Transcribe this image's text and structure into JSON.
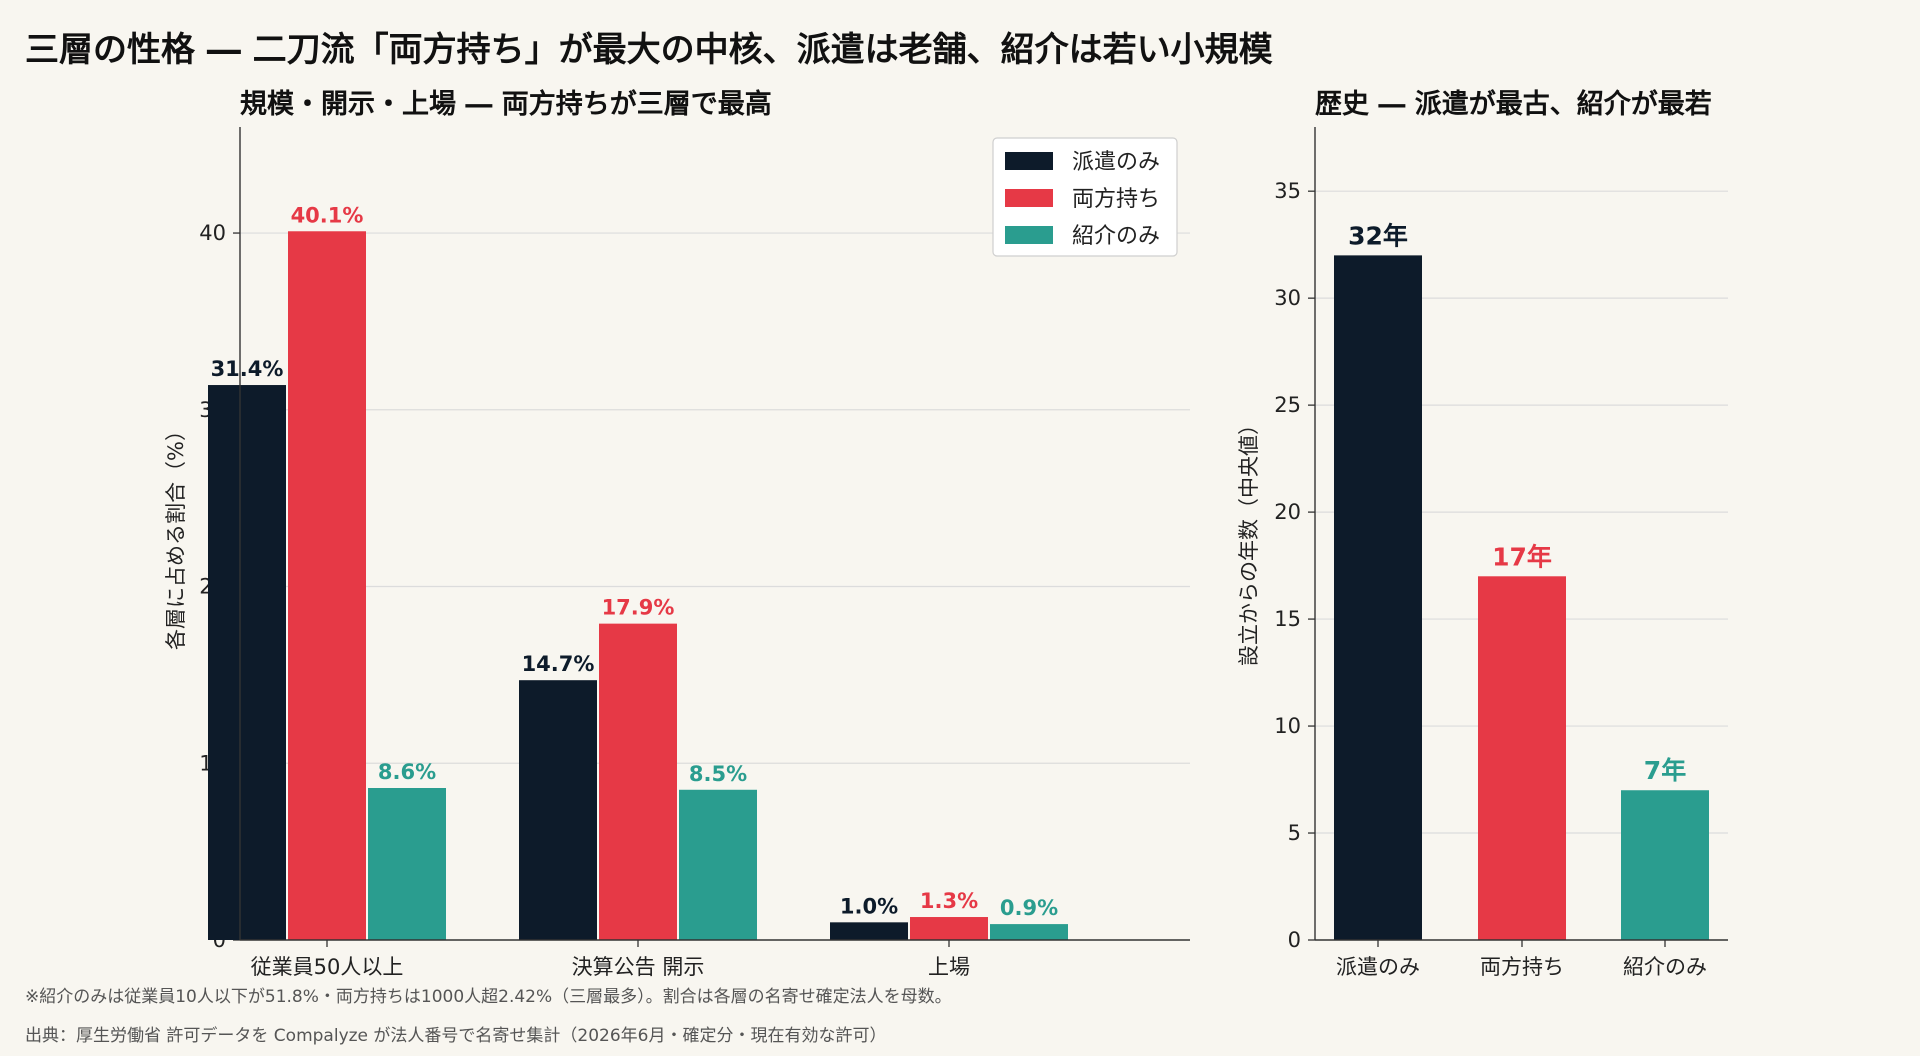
{
  "title": "三層の性格 ― 二刀流「両方持ち」が最大の中核、派遣は老舗、紹介は若い小規模",
  "colors": {
    "dispatch": "#0d1b2a",
    "both": "#e63946",
    "referral": "#2a9d8f",
    "background": "#f8f6f0",
    "grid": "#dcdcdc"
  },
  "chart_data": [
    {
      "type": "bar",
      "title": "規模・開示・上場 ― 両方持ちが三層で最高",
      "ylabel": "各層に占める割合（%）",
      "xlabel": "",
      "categories": [
        "従業員50人以上",
        "決算公告 開示",
        "上場"
      ],
      "series": [
        {
          "name": "派遣のみ",
          "color": "#0d1b2a",
          "values": [
            31.4,
            14.7,
            1.0
          ],
          "labels": [
            "31.4%",
            "14.7%",
            "1.0%"
          ]
        },
        {
          "name": "両方持ち",
          "color": "#e63946",
          "values": [
            40.1,
            17.9,
            1.3
          ],
          "labels": [
            "40.1%",
            "17.9%",
            "1.3%"
          ]
        },
        {
          "name": "紹介のみ",
          "color": "#2a9d8f",
          "values": [
            8.6,
            8.5,
            0.9
          ],
          "labels": [
            "8.6%",
            "8.5%",
            "0.9%"
          ]
        }
      ],
      "yticks": [
        0,
        10,
        20,
        30,
        40
      ],
      "ylim": [
        0,
        46
      ],
      "grid": true,
      "legend": "top-right"
    },
    {
      "type": "bar",
      "title": "歴史 ― 派遣が最古、紹介が最若",
      "ylabel": "設立からの年数（中央値）",
      "xlabel": "",
      "categories": [
        "派遣のみ",
        "両方持ち",
        "紹介のみ"
      ],
      "values": [
        32,
        17,
        7
      ],
      "labels": [
        "32年",
        "17年",
        "7年"
      ],
      "colors": [
        "#0d1b2a",
        "#e63946",
        "#2a9d8f"
      ],
      "yticks": [
        0,
        5,
        10,
        15,
        20,
        25,
        30,
        35
      ],
      "ylim": [
        0,
        38
      ],
      "grid": true
    }
  ],
  "footnote": "※紹介のみは従業員10人以下が51.8%・両方持ちは1000人超2.42%（三層最多）。割合は各層の名寄せ確定法人を母数。",
  "source": "出典：厚生労働省 許可データを Compalyze が法人番号で名寄せ集計（2026年6月・確定分・現在有効な許可）"
}
